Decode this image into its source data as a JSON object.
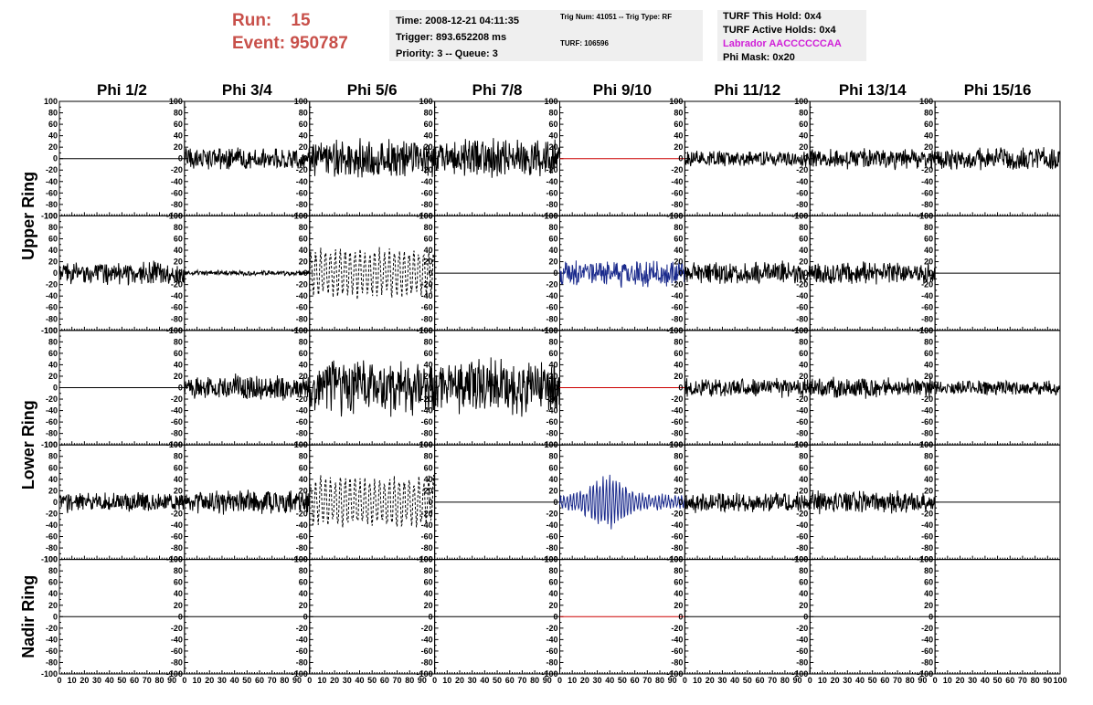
{
  "header": {
    "run_label": "Run:",
    "run_value": "15",
    "event_label": "Event:",
    "event_value": "950787"
  },
  "info_time": {
    "time": "Time: 2008-12-21 04:11:35",
    "trigger": "Trigger: 893.652208 ms",
    "priority": "Priority: 3 -- Queue: 3"
  },
  "info_trig": {
    "trig": "Trig Num: 41051 -- Trig Type: RF",
    "turf": "TURF: 106596"
  },
  "info_turf": {
    "hold": "TURF This Hold: 0x4",
    "active": "TURF Active Holds: 0x4",
    "labrador": "Labrador AACCCCCCAA",
    "phimask": "Phi Mask: 0x20"
  },
  "colors": {
    "header_text": "#c8504a",
    "labrador": "#d020d8",
    "trace_default": "#000000",
    "trace_blue": "#1a2a8c",
    "trace_red": "#cc0000",
    "panel_bg": "#efefef"
  },
  "chart_data": {
    "type": "line",
    "columns": [
      "Phi 1/2",
      "Phi 3/4",
      "Phi 5/6",
      "Phi 7/8",
      "Phi 9/10",
      "Phi 11/12",
      "Phi 13/14",
      "Phi 15/16"
    ],
    "row_labels": [
      "Upper Ring",
      "Lower Ring",
      "Nadir Ring"
    ],
    "xlim": [
      0,
      100
    ],
    "ylim": [
      -100,
      100
    ],
    "x_ticks": [
      0,
      10,
      20,
      30,
      40,
      50,
      60,
      70,
      80,
      90,
      100
    ],
    "y_ticks": [
      -100,
      -80,
      -60,
      -40,
      -20,
      0,
      20,
      40,
      60,
      80,
      100
    ],
    "rows_per_group": [
      2,
      2,
      1
    ],
    "grid": [
      [
        {
          "kind": "flat",
          "amp": 0,
          "color": "trace_default"
        },
        {
          "kind": "noise",
          "amp": 22,
          "color": "trace_default"
        },
        {
          "kind": "noise",
          "amp": 38,
          "color": "trace_default"
        },
        {
          "kind": "noise",
          "amp": 38,
          "color": "trace_default"
        },
        {
          "kind": "flat",
          "amp": 0,
          "color": "trace_red"
        },
        {
          "kind": "noise",
          "amp": 16,
          "color": "trace_default"
        },
        {
          "kind": "noise",
          "amp": 20,
          "color": "trace_default"
        },
        {
          "kind": "noise",
          "amp": 22,
          "color": "trace_default"
        }
      ],
      [
        {
          "kind": "noise",
          "amp": 22,
          "color": "trace_default"
        },
        {
          "kind": "noise",
          "amp": 5,
          "color": "trace_default"
        },
        {
          "kind": "dashed",
          "amp": 45,
          "color": "trace_default"
        },
        {
          "kind": "flat",
          "amp": 0,
          "color": "trace_default"
        },
        {
          "kind": "noise",
          "amp": 26,
          "color": "trace_blue"
        },
        {
          "kind": "noise",
          "amp": 22,
          "color": "trace_default"
        },
        {
          "kind": "noise",
          "amp": 22,
          "color": "trace_default"
        },
        {
          "kind": "flat",
          "amp": 0,
          "color": "trace_default"
        }
      ],
      [
        {
          "kind": "flat",
          "amp": 0,
          "color": "trace_default"
        },
        {
          "kind": "noise",
          "amp": 25,
          "color": "trace_default"
        },
        {
          "kind": "noise",
          "amp": 55,
          "color": "trace_default"
        },
        {
          "kind": "noise",
          "amp": 55,
          "color": "trace_default"
        },
        {
          "kind": "flat",
          "amp": 0,
          "color": "trace_red"
        },
        {
          "kind": "noise",
          "amp": 18,
          "color": "trace_default"
        },
        {
          "kind": "noise",
          "amp": 20,
          "color": "trace_default"
        },
        {
          "kind": "noise",
          "amp": 14,
          "color": "trace_default"
        }
      ],
      [
        {
          "kind": "noise",
          "amp": 20,
          "color": "trace_default"
        },
        {
          "kind": "noise",
          "amp": 24,
          "color": "trace_default"
        },
        {
          "kind": "dashed",
          "amp": 48,
          "color": "trace_default"
        },
        {
          "kind": "flat",
          "amp": 0,
          "color": "trace_default"
        },
        {
          "kind": "burst",
          "amp": 45,
          "color": "trace_blue"
        },
        {
          "kind": "noise",
          "amp": 20,
          "color": "trace_default"
        },
        {
          "kind": "noise",
          "amp": 22,
          "color": "trace_default"
        },
        {
          "kind": "flat",
          "amp": 0,
          "color": "trace_default"
        }
      ],
      [
        {
          "kind": "flat",
          "amp": 0,
          "color": "trace_default"
        },
        {
          "kind": "flat",
          "amp": 0,
          "color": "trace_default"
        },
        {
          "kind": "flat",
          "amp": 0,
          "color": "trace_default"
        },
        {
          "kind": "flat",
          "amp": 0,
          "color": "trace_default"
        },
        {
          "kind": "flat",
          "amp": 0,
          "color": "trace_red"
        },
        {
          "kind": "flat",
          "amp": 0,
          "color": "trace_default"
        },
        {
          "kind": "flat",
          "amp": 0,
          "color": "trace_default"
        },
        {
          "kind": "flat",
          "amp": 0,
          "color": "trace_default"
        }
      ]
    ]
  }
}
